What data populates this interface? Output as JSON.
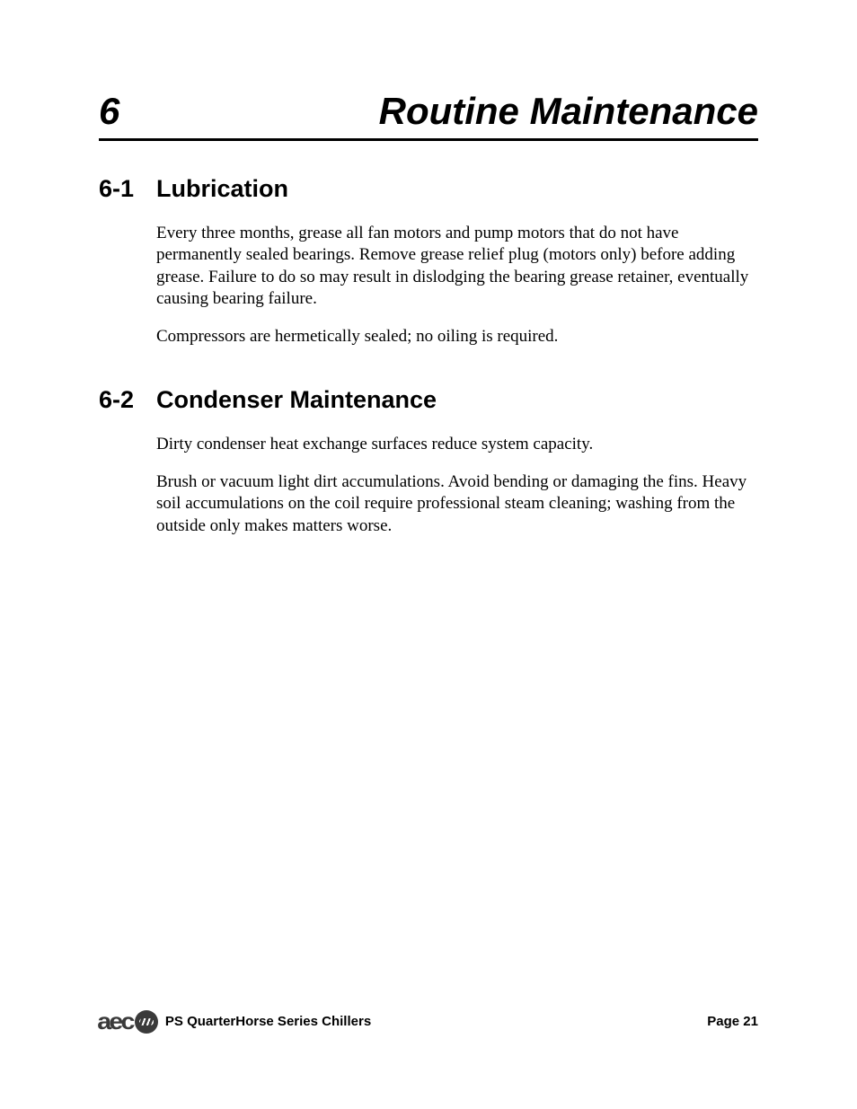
{
  "colors": {
    "text": "#000000",
    "background": "#ffffff",
    "logo": "#3a3a3a",
    "rule": "#000000"
  },
  "typography": {
    "body_font": "Times New Roman",
    "heading_font": "Arial",
    "chapter_fontsize_pt": 32,
    "section_heading_fontsize_pt": 20,
    "body_fontsize_pt": 14,
    "footer_fontsize_pt": 11
  },
  "chapter": {
    "number": "6",
    "title": "Routine Maintenance"
  },
  "sections": [
    {
      "number": "6-1",
      "title": "Lubrication",
      "paragraphs": [
        "Every three months, grease all fan motors and pump motors that do not have permanently sealed bearings. Remove grease relief plug (motors only) before adding grease. Failure to do so may result in dislodging the bearing grease retainer, eventually causing bearing failure.",
        "Compressors are hermetically sealed; no oiling is required."
      ]
    },
    {
      "number": "6-2",
      "title": "Condenser Maintenance",
      "paragraphs": [
        "Dirty condenser heat exchange surfaces reduce system capacity.",
        "Brush or vacuum light dirt accumulations. Avoid bending or damaging the fins. Heavy soil accumulations on the coil require professional steam cleaning; washing from the outside only makes matters worse."
      ]
    }
  ],
  "footer": {
    "logo_text": "aec",
    "doc_title": "PS QuarterHorse Series Chillers",
    "page_label": "Page 21"
  }
}
